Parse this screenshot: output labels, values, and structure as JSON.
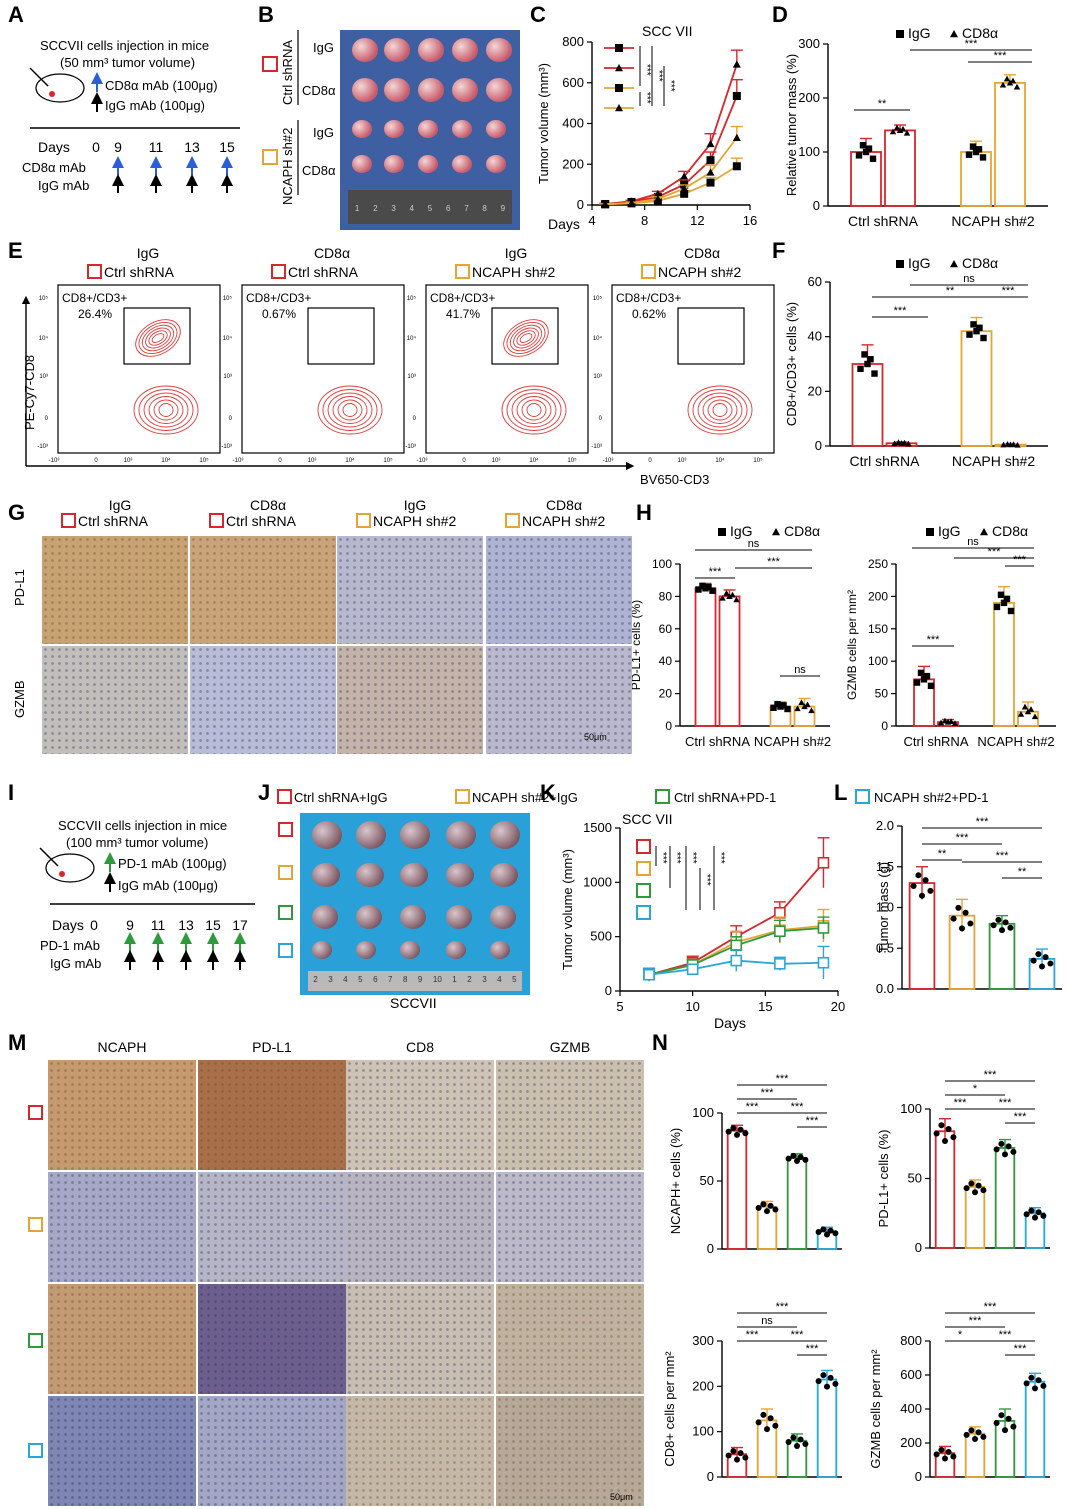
{
  "colors": {
    "ctrl": "#d7262c",
    "ncaph": "#e6a532",
    "pd1": "#2e9a3c",
    "ncaphpd1": "#2aa6dc",
    "cd8a_line": "#f07b2a",
    "blue_arrow": "#2b5fd9",
    "green_arrow": "#2e9a3c"
  },
  "panel_letters": {
    "A": "A",
    "B": "B",
    "C": "C",
    "D": "D",
    "E": "E",
    "F": "F",
    "G": "G",
    "H": "H",
    "I": "I",
    "J": "J",
    "K": "K",
    "L": "L",
    "M": "M",
    "N": "N"
  },
  "panelA": {
    "line1": "SCCVII cells injection in mice",
    "line2": "(50 mm³ tumor volume)",
    "cd8_label": "CD8α mAb (100μg)",
    "igg_label": "IgG mAb (100μg)",
    "days_label": "Days",
    "days": [
      "0",
      "9",
      "11",
      "13",
      "15"
    ],
    "row1": "CD8α mAb",
    "row2": "IgG mAb"
  },
  "panelB": {
    "group1": "Ctrl shRNA",
    "group2": "NCAPH sh#2",
    "row_labels": [
      "IgG",
      "CD8α",
      "IgG",
      "CD8α"
    ],
    "ruler_nums": [
      "1",
      "2",
      "3",
      "4",
      "5",
      "6",
      "7",
      "8",
      "9"
    ]
  },
  "panelE": {
    "headers": [
      {
        "treat": "IgG",
        "group": "Ctrl shRNA"
      },
      {
        "treat": "CD8α",
        "group": "Ctrl shRNA"
      },
      {
        "treat": "IgG",
        "group": "NCAPH sh#2"
      },
      {
        "treat": "CD8α",
        "group": "NCAPH sh#2"
      }
    ],
    "gate_label": "CD8+/CD3+",
    "percents": [
      "26.4%",
      "0.67%",
      "41.7%",
      "0.62%"
    ],
    "y_axis": "PE-Cy7-CD8",
    "x_axis": "BV650-CD3",
    "x_ticks": [
      "-10³",
      "0",
      "10³",
      "10⁴",
      "10⁵"
    ],
    "y_ticks": [
      "10⁵",
      "10⁴",
      "10³",
      "0",
      "-10³"
    ]
  },
  "panelG": {
    "headers": [
      {
        "treat": "IgG",
        "group": "Ctrl shRNA"
      },
      {
        "treat": "CD8α",
        "group": "Ctrl shRNA"
      },
      {
        "treat": "IgG",
        "group": "NCAPH sh#2"
      },
      {
        "treat": "CD8α",
        "group": "NCAPH sh#2"
      }
    ],
    "rows": [
      "PD-L1",
      "GZMB"
    ],
    "scale": "50μm"
  },
  "panelI": {
    "line1": "SCCVII cells injection in mice",
    "line2": "(100 mm³ tumor volume)",
    "pd1_label": "PD-1 mAb (100μg)",
    "igg_label": "IgG mAb (100μg)",
    "days_label": "Days",
    "days": [
      "0",
      "9",
      "11",
      "13",
      "15",
      "17"
    ],
    "row1": "PD-1 mAb",
    "row2": "IgG mAb"
  },
  "panelJ": {
    "caption": "SCCVII",
    "ruler_nums": [
      "2",
      "3",
      "4",
      "5",
      "6",
      "7",
      "8",
      "9",
      "10",
      "1",
      "2",
      "3",
      "4",
      "5"
    ]
  },
  "legend_groups": {
    "g1": "Ctrl shRNA+IgG",
    "g2": "NCAPH sh#2+IgG",
    "g3": "Ctrl shRNA+PD-1",
    "g4": "NCAPH sh#2+PD-1"
  },
  "panelM": {
    "headers": [
      "NCAPH",
      "PD-L1",
      "CD8",
      "GZMB"
    ],
    "scale": "50μm"
  },
  "chart_data": [
    {
      "id": "C",
      "type": "line",
      "title": "SCC VII",
      "xlabel": "Days",
      "ylabel": "Tumor volume (mm³)",
      "xlim": [
        4,
        16
      ],
      "ylim": [
        0,
        800
      ],
      "xticks": [
        4,
        8,
        12,
        16
      ],
      "yticks": [
        0,
        200,
        400,
        600,
        800
      ],
      "series": [
        {
          "name": "Ctrl shRNA IgG",
          "marker": "square",
          "x": [
            5,
            7,
            9,
            11,
            13,
            15
          ],
          "values": [
            5,
            15,
            40,
            100,
            220,
            535
          ],
          "err": [
            3,
            5,
            10,
            20,
            40,
            80
          ]
        },
        {
          "name": "Ctrl shRNA CD8α",
          "marker": "triangle",
          "x": [
            5,
            7,
            9,
            11,
            13,
            15
          ],
          "values": [
            5,
            18,
            55,
            140,
            300,
            690
          ],
          "err": [
            3,
            5,
            12,
            25,
            50,
            70
          ]
        },
        {
          "name": "NCAPH sh#2 IgG",
          "marker": "square",
          "x": [
            5,
            7,
            9,
            11,
            13,
            15
          ],
          "values": [
            3,
            8,
            20,
            55,
            110,
            190
          ],
          "err": [
            2,
            4,
            8,
            15,
            25,
            40
          ]
        },
        {
          "name": "NCAPH sh#2 CD8α",
          "marker": "triangle",
          "x": [
            5,
            7,
            9,
            11,
            13,
            15
          ],
          "values": [
            4,
            10,
            30,
            80,
            160,
            330
          ],
          "err": [
            2,
            4,
            10,
            18,
            35,
            55
          ]
        }
      ],
      "sig": [
        "***",
        "***",
        "***",
        "***"
      ]
    },
    {
      "id": "D",
      "type": "bar",
      "ylabel": "Relative tumor mass (%)",
      "ylim": [
        0,
        300
      ],
      "yticks": [
        0,
        100,
        200,
        300
      ],
      "categories": [
        "Ctrl shRNA",
        "NCAPH sh#2"
      ],
      "legend": [
        "IgG",
        "CD8α"
      ],
      "series": [
        {
          "name": "IgG",
          "values": [
            100,
            100
          ],
          "err": [
            25,
            20
          ]
        },
        {
          "name": "CD8α",
          "values": [
            140,
            228
          ],
          "err": [
            10,
            15
          ]
        }
      ],
      "sig": [
        "**",
        "***",
        "***"
      ]
    },
    {
      "id": "F",
      "type": "bar",
      "ylabel": "CD8+/CD3+ cells (%)",
      "ylim": [
        0,
        60
      ],
      "yticks": [
        0,
        20,
        40,
        60
      ],
      "categories": [
        "Ctrl shRNA",
        "NCAPH sh#2"
      ],
      "legend": [
        "IgG",
        "CD8α"
      ],
      "series": [
        {
          "name": "IgG",
          "values": [
            30,
            42
          ],
          "err": [
            7,
            5
          ]
        },
        {
          "name": "CD8α",
          "values": [
            1,
            0.5
          ],
          "err": [
            0.5,
            0.3
          ]
        }
      ],
      "sig": [
        "***",
        "**",
        "ns",
        "***"
      ]
    },
    {
      "id": "H1",
      "type": "bar",
      "ylabel": "PD-L1+ cells (%)",
      "ylim": [
        0,
        100
      ],
      "yticks": [
        0,
        20,
        40,
        60,
        80,
        100
      ],
      "categories": [
        "Ctrl shRNA",
        "NCAPH sh#2"
      ],
      "legend": [
        "IgG",
        "CD8α"
      ],
      "series": [
        {
          "name": "IgG",
          "values": [
            85,
            12
          ],
          "err": [
            3,
            3
          ]
        },
        {
          "name": "CD8α",
          "values": [
            80,
            12
          ],
          "err": [
            4,
            5
          ]
        }
      ],
      "sig": [
        "***",
        "ns",
        "***",
        "ns"
      ]
    },
    {
      "id": "H2",
      "type": "bar",
      "ylabel": "GZMB cells per mm²",
      "ylim": [
        0,
        250
      ],
      "yticks": [
        0,
        50,
        100,
        150,
        200,
        250
      ],
      "categories": [
        "Ctrl shRNA",
        "NCAPH sh#2"
      ],
      "legend": [
        "IgG",
        "CD8α"
      ],
      "series": [
        {
          "name": "IgG",
          "values": [
            72,
            190
          ],
          "err": [
            20,
            25
          ]
        },
        {
          "name": "CD8α",
          "values": [
            6,
            22
          ],
          "err": [
            4,
            15
          ]
        }
      ],
      "sig": [
        "***",
        "ns",
        "***",
        "***"
      ]
    },
    {
      "id": "K",
      "type": "line",
      "title": "SCC VII",
      "xlabel": "Days",
      "ylabel": "Tumor volume (mm³)",
      "xlim": [
        5,
        20
      ],
      "ylim": [
        0,
        1500
      ],
      "xticks": [
        5,
        10,
        15,
        20
      ],
      "yticks": [
        0,
        500,
        1000,
        1500
      ],
      "series": [
        {
          "name": "Ctrl shRNA+IgG",
          "x": [
            7,
            10,
            13,
            16,
            19
          ],
          "values": [
            150,
            260,
            500,
            720,
            1180
          ],
          "err": [
            60,
            60,
            100,
            100,
            230
          ]
        },
        {
          "name": "NCAPH sh#2+IgG",
          "x": [
            7,
            10,
            13,
            16,
            19
          ],
          "values": [
            150,
            240,
            450,
            560,
            600
          ],
          "err": [
            50,
            50,
            100,
            120,
            150
          ]
        },
        {
          "name": "Ctrl shRNA+PD-1",
          "x": [
            7,
            10,
            13,
            16,
            19
          ],
          "values": [
            150,
            240,
            420,
            550,
            580
          ],
          "err": [
            50,
            50,
            80,
            100,
            100
          ]
        },
        {
          "name": "NCAPH sh#2+PD-1",
          "x": [
            7,
            10,
            13,
            16,
            19
          ],
          "values": [
            150,
            200,
            280,
            250,
            260
          ],
          "err": [
            60,
            40,
            100,
            60,
            150
          ]
        }
      ],
      "sig": [
        "***",
        "***",
        "***",
        "***",
        "***"
      ]
    },
    {
      "id": "L",
      "type": "bar",
      "ylabel": "Tumor mass (g)",
      "ylim": [
        0,
        2
      ],
      "yticks": [
        0.0,
        0.5,
        1.0,
        1.5,
        2.0
      ],
      "categories": [
        "Ctrl shRNA+IgG",
        "NCAPH sh#2+IgG",
        "Ctrl shRNA+PD-1",
        "NCAPH sh#2+PD-1"
      ],
      "values": [
        1.3,
        0.9,
        0.8,
        0.37
      ],
      "err": [
        0.2,
        0.2,
        0.1,
        0.12
      ],
      "sig": [
        "***",
        "***",
        "**",
        "***",
        "**"
      ]
    },
    {
      "id": "N1",
      "type": "bar",
      "ylabel": "NCAPH+ cells (%)",
      "ylim": [
        0,
        100
      ],
      "yticks": [
        0,
        50,
        100
      ],
      "values": [
        87,
        31,
        67,
        13
      ],
      "err": [
        4,
        4,
        3,
        3
      ],
      "sig": [
        "***",
        "***",
        "***",
        "***",
        "***"
      ]
    },
    {
      "id": "N2",
      "type": "bar",
      "ylabel": "PD-L1+ cells (%)",
      "ylim": [
        0,
        100
      ],
      "yticks": [
        0,
        50,
        100
      ],
      "values": [
        84,
        44,
        72,
        25
      ],
      "err": [
        9,
        5,
        6,
        4
      ],
      "sig": [
        "***",
        "*",
        "***",
        "***",
        "***"
      ]
    },
    {
      "id": "N3",
      "type": "bar",
      "ylabel": "CD8+ cells per mm²",
      "ylim": [
        0,
        300
      ],
      "yticks": [
        0,
        100,
        200,
        300
      ],
      "values": [
        50,
        125,
        80,
        215
      ],
      "err": [
        15,
        25,
        15,
        20
      ],
      "sig": [
        "***",
        "ns",
        "***",
        "***",
        "***"
      ]
    },
    {
      "id": "N4",
      "type": "bar",
      "ylabel": "GZMB cells per mm²",
      "ylim": [
        0,
        800
      ],
      "yticks": [
        0,
        200,
        400,
        600,
        800
      ],
      "values": [
        140,
        255,
        330,
        560
      ],
      "err": [
        40,
        40,
        70,
        50
      ],
      "sig": [
        "***",
        "***",
        "*",
        "***",
        "***"
      ]
    }
  ]
}
